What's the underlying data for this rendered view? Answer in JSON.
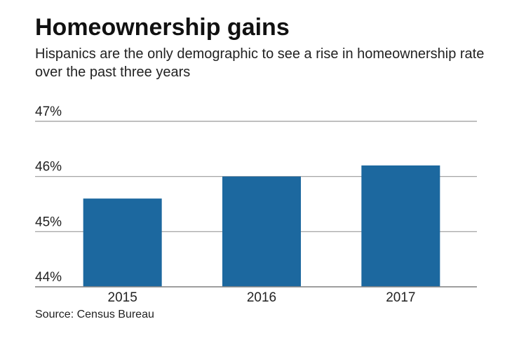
{
  "chart_data": {
    "type": "bar",
    "title": "Homeownership gains",
    "subtitle": "Hispanics are the only demographic to see a rise in homeownership rate over the past three years",
    "categories": [
      "2015",
      "2016",
      "2017"
    ],
    "values": [
      45.6,
      46.0,
      46.2
    ],
    "ylim": [
      44,
      47
    ],
    "yticks": [
      44,
      45,
      46,
      47
    ],
    "ytick_labels": [
      "44%",
      "45%",
      "46%",
      "47%"
    ],
    "xlabel": "",
    "ylabel": "",
    "grid": true,
    "bar_color": "#1c689f",
    "source": "Source: Census Bureau"
  }
}
